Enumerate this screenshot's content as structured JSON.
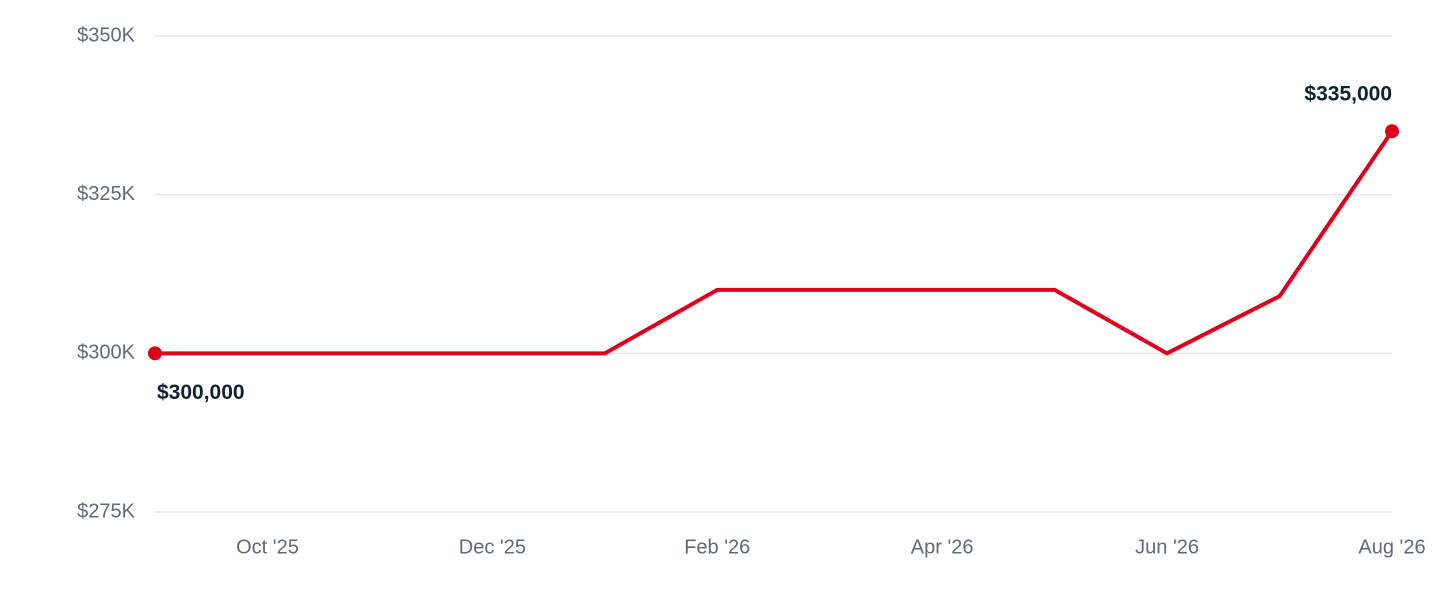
{
  "chart_data": {
    "type": "line",
    "categories": [
      null,
      "Oct '25",
      null,
      "Dec '25",
      null,
      "Feb '26",
      null,
      "Apr '26",
      null,
      "Jun '26",
      null,
      "Aug '26"
    ],
    "series": [
      {
        "color": "#e0001b",
        "values": [
          300000,
          300000,
          300000,
          300000,
          300000,
          310000,
          310000,
          310000,
          310000,
          300000,
          309000,
          335000
        ],
        "value_labels": [
          "$300,000",
          null,
          null,
          null,
          null,
          null,
          null,
          null,
          null,
          null,
          null,
          "$335,000"
        ]
      }
    ],
    "ylim": [
      275000,
      350000
    ],
    "yticks": [
      {
        "value": 275000,
        "label": "$275K"
      },
      {
        "value": 300000,
        "label": "$300K"
      },
      {
        "value": 325000,
        "label": "$325K"
      },
      {
        "value": 350000,
        "label": "$350K"
      }
    ],
    "grid": true
  }
}
